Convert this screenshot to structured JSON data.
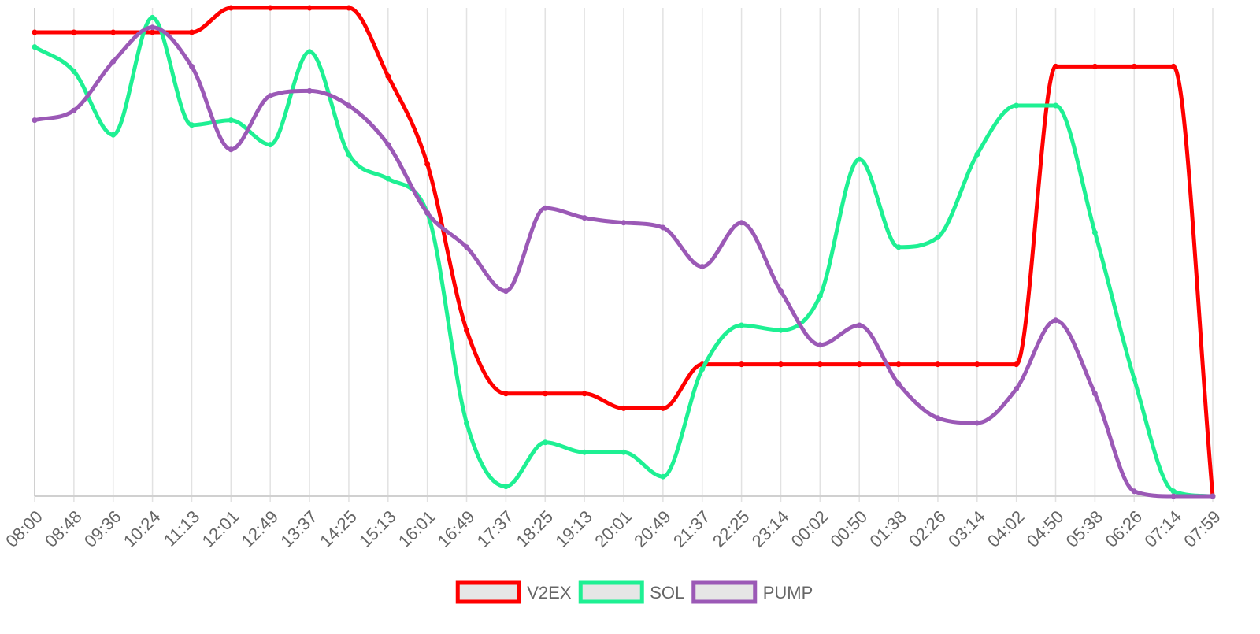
{
  "chart_data": {
    "type": "line",
    "title": "",
    "xlabel": "",
    "ylabel": "",
    "y_ticks_shown": false,
    "grid": "vertical",
    "legend": "bottom-center",
    "ylim": [
      0,
      100
    ],
    "x": [
      "08:00",
      "08:48",
      "09:36",
      "10:24",
      "11:13",
      "12:01",
      "12:49",
      "13:37",
      "14:25",
      "15:13",
      "16:01",
      "16:49",
      "17:37",
      "18:25",
      "19:13",
      "20:01",
      "20:49",
      "21:37",
      "22:25",
      "23:14",
      "00:02",
      "00:50",
      "01:38",
      "02:26",
      "03:14",
      "04:02",
      "04:50",
      "05:38",
      "06:26",
      "07:14",
      "07:59"
    ],
    "series": [
      {
        "name": "V2EX",
        "color": "#ff0000",
        "values": [
          95,
          95,
          95,
          95,
          95,
          100,
          100,
          100,
          100,
          86,
          68,
          34,
          21,
          21,
          21,
          18,
          18,
          27,
          27,
          27,
          27,
          27,
          27,
          27,
          27,
          27,
          88,
          88,
          88,
          88,
          0
        ]
      },
      {
        "name": "SOL",
        "color": "#1ef093",
        "values": [
          92,
          87,
          74,
          98,
          76,
          77,
          72,
          91,
          70,
          65,
          58,
          15,
          2,
          11,
          9,
          9,
          4,
          26,
          35,
          34,
          41,
          69,
          51,
          53,
          70,
          80,
          80,
          54,
          24,
          1,
          0
        ]
      },
      {
        "name": "PUMP",
        "color": "#9b59b6",
        "values": [
          77,
          79,
          89,
          96,
          88,
          71,
          82,
          83,
          80,
          72,
          58,
          51,
          42,
          59,
          57,
          56,
          55,
          47,
          56,
          42,
          31,
          35,
          23,
          16,
          15,
          22,
          36,
          21,
          1,
          0,
          0
        ]
      }
    ]
  }
}
